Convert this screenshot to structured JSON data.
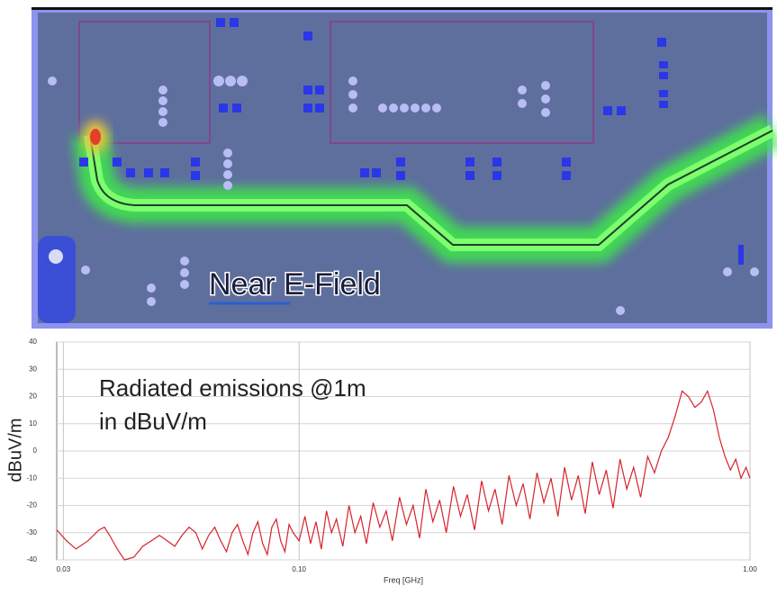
{
  "pcb_panel": {
    "label": "Near E-Field"
  },
  "chart_data": {
    "type": "line",
    "annotations": [
      "Radiated emissions @1m",
      "in dBuV/m"
    ],
    "ylabel": "dBuV/m",
    "xlabel": "Freq [GHz]",
    "log_x": true,
    "grid": true,
    "color": "#d6232b",
    "xlim": [
      0.029,
      1.0
    ],
    "ylim": [
      -40,
      40
    ],
    "xticks": [
      0.03,
      {
        "value": 0.1,
        "label": "0.10"
      },
      {
        "value": 1.0,
        "label": "1.00"
      }
    ],
    "yticks": [
      40,
      30,
      20,
      10,
      0,
      -10,
      -20,
      -30,
      -40
    ],
    "x": [
      0.029,
      0.0305,
      0.032,
      0.034,
      0.036,
      0.037,
      0.038,
      0.0395,
      0.041,
      0.043,
      0.045,
      0.047,
      0.049,
      0.051,
      0.053,
      0.055,
      0.057,
      0.059,
      0.061,
      0.063,
      0.065,
      0.067,
      0.069,
      0.071,
      0.073,
      0.075,
      0.077,
      0.079,
      0.081,
      0.083,
      0.085,
      0.087,
      0.089,
      0.091,
      0.093,
      0.095,
      0.097,
      0.1,
      0.103,
      0.106,
      0.109,
      0.112,
      0.115,
      0.118,
      0.121,
      0.125,
      0.129,
      0.133,
      0.137,
      0.141,
      0.146,
      0.151,
      0.156,
      0.161,
      0.167,
      0.173,
      0.179,
      0.185,
      0.191,
      0.198,
      0.205,
      0.212,
      0.22,
      0.228,
      0.236,
      0.245,
      0.254,
      0.263,
      0.272,
      0.282,
      0.292,
      0.303,
      0.314,
      0.325,
      0.337,
      0.349,
      0.362,
      0.375,
      0.388,
      0.402,
      0.416,
      0.431,
      0.447,
      0.463,
      0.48,
      0.497,
      0.515,
      0.533,
      0.552,
      0.572,
      0.593,
      0.614,
      0.636,
      0.659,
      0.683,
      0.707,
      0.73,
      0.755,
      0.78,
      0.805,
      0.83,
      0.855,
      0.88,
      0.905,
      0.93,
      0.955,
      0.98,
      1.0
    ],
    "values": [
      -29,
      -33,
      -36,
      -33,
      -29,
      -28,
      -31,
      -36,
      -40,
      -39,
      -35,
      -33,
      -31,
      -33,
      -35,
      -31,
      -28,
      -30,
      -36,
      -31,
      -28,
      -33,
      -37,
      -30,
      -27,
      -33,
      -38,
      -30,
      -26,
      -34,
      -38,
      -28,
      -25,
      -33,
      -37,
      -27,
      -30,
      -33,
      -24,
      -34,
      -26,
      -36,
      -22,
      -30,
      -25,
      -35,
      -20,
      -30,
      -24,
      -34,
      -19,
      -28,
      -22,
      -33,
      -17,
      -27,
      -20,
      -32,
      -14,
      -26,
      -18,
      -30,
      -13,
      -24,
      -16,
      -29,
      -11,
      -22,
      -14,
      -27,
      -9,
      -20,
      -12,
      -25,
      -8,
      -19,
      -10,
      -24,
      -6,
      -18,
      -9,
      -23,
      -4,
      -16,
      -7,
      -21,
      -3,
      -14,
      -6,
      -17,
      -2,
      -8,
      0,
      5,
      13,
      22,
      20,
      16,
      18,
      22,
      15,
      5,
      -2,
      -7,
      -3,
      -10,
      -6,
      -10
    ]
  }
}
